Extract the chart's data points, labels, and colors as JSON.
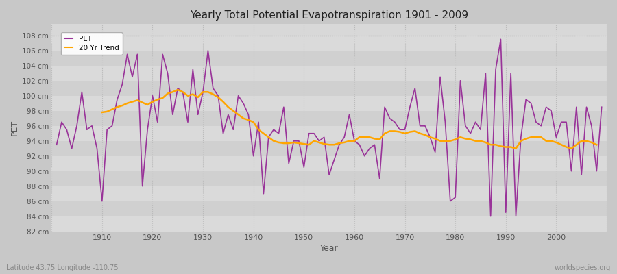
{
  "title": "Yearly Total Potential Evapotranspiration 1901 - 2009",
  "xlabel": "Year",
  "ylabel": "PET",
  "subtitle": "Latitude 43.75 Longitude -110.75",
  "watermark": "worldspecies.org",
  "pet_color": "#993399",
  "trend_color": "#FFA500",
  "fig_bg_color": "#C8C8C8",
  "plot_bg_color": "#D8D8D8",
  "band_color_light": "#DDDDDD",
  "band_color_dark": "#CCCCCC",
  "ylim": [
    82,
    109
  ],
  "xlim": [
    1900,
    2010
  ],
  "ytick_labels": [
    "82 cm",
    "84 cm",
    "86 cm",
    "88 cm",
    "90 cm",
    "92 cm",
    "94 cm",
    "96 cm",
    "98 cm",
    "100 cm",
    "102 cm",
    "104 cm",
    "106 cm",
    "108 cm"
  ],
  "ytick_values": [
    82,
    84,
    86,
    88,
    90,
    92,
    94,
    96,
    98,
    100,
    102,
    104,
    106,
    108
  ],
  "years": [
    1901,
    1902,
    1903,
    1904,
    1905,
    1906,
    1907,
    1908,
    1909,
    1910,
    1911,
    1912,
    1913,
    1914,
    1915,
    1916,
    1917,
    1918,
    1919,
    1920,
    1921,
    1922,
    1923,
    1924,
    1925,
    1926,
    1927,
    1928,
    1929,
    1930,
    1931,
    1932,
    1933,
    1934,
    1935,
    1936,
    1937,
    1938,
    1939,
    1940,
    1941,
    1942,
    1943,
    1944,
    1945,
    1946,
    1947,
    1948,
    1949,
    1950,
    1951,
    1952,
    1953,
    1954,
    1955,
    1956,
    1957,
    1958,
    1959,
    1960,
    1961,
    1962,
    1963,
    1964,
    1965,
    1966,
    1967,
    1968,
    1969,
    1970,
    1971,
    1972,
    1973,
    1974,
    1975,
    1976,
    1977,
    1978,
    1979,
    1980,
    1981,
    1982,
    1983,
    1984,
    1985,
    1986,
    1987,
    1988,
    1989,
    1990,
    1991,
    1992,
    1993,
    1994,
    1995,
    1996,
    1997,
    1998,
    1999,
    2000,
    2001,
    2002,
    2003,
    2004,
    2005,
    2006,
    2007,
    2008,
    2009
  ],
  "pet_values": [
    93.5,
    96.5,
    95.5,
    93.0,
    96.0,
    100.5,
    95.5,
    96.0,
    93.0,
    86.0,
    95.5,
    96.0,
    99.5,
    101.5,
    105.5,
    102.5,
    105.5,
    88.0,
    95.5,
    100.0,
    96.5,
    105.5,
    103.0,
    97.5,
    101.0,
    100.5,
    96.5,
    103.5,
    97.5,
    100.5,
    106.0,
    101.0,
    100.0,
    95.0,
    97.5,
    95.5,
    100.0,
    99.0,
    97.5,
    92.0,
    96.5,
    87.0,
    94.5,
    95.5,
    95.0,
    98.5,
    91.0,
    94.0,
    94.0,
    90.5,
    95.0,
    95.0,
    94.0,
    94.5,
    89.5,
    91.5,
    93.5,
    94.5,
    97.5,
    94.0,
    93.5,
    92.0,
    93.0,
    93.5,
    89.0,
    98.5,
    97.0,
    96.5,
    95.5,
    95.5,
    98.5,
    101.0,
    96.0,
    96.0,
    94.5,
    92.5,
    102.5,
    96.5,
    86.0,
    86.5,
    102.0,
    96.0,
    95.0,
    96.5,
    95.5,
    103.0,
    84.0,
    103.5,
    107.5,
    84.5,
    103.0,
    84.0,
    94.5,
    99.5,
    99.0,
    96.5,
    96.0,
    98.5,
    98.0,
    94.5,
    96.5,
    96.5,
    90.0,
    98.5,
    89.5,
    98.5,
    96.0,
    90.0,
    98.5
  ],
  "trend_values": [
    null,
    null,
    null,
    null,
    null,
    null,
    null,
    null,
    null,
    97.8,
    97.9,
    98.2,
    98.5,
    98.7,
    99.0,
    99.2,
    99.4,
    99.1,
    98.8,
    99.2,
    99.5,
    99.7,
    100.3,
    100.5,
    100.8,
    100.5,
    100.0,
    100.2,
    99.8,
    100.5,
    100.5,
    100.2,
    99.8,
    99.2,
    98.5,
    98.0,
    97.5,
    97.0,
    96.8,
    96.5,
    95.5,
    95.0,
    94.5,
    94.0,
    93.8,
    93.7,
    93.7,
    93.8,
    93.7,
    93.6,
    93.5,
    94.0,
    93.8,
    93.6,
    93.5,
    93.5,
    93.7,
    93.8,
    94.0,
    94.0,
    94.5,
    94.5,
    94.5,
    94.3,
    94.2,
    95.0,
    95.3,
    95.3,
    95.2,
    95.0,
    95.2,
    95.3,
    95.0,
    94.8,
    94.5,
    94.3,
    94.0,
    94.0,
    94.0,
    94.2,
    94.5,
    94.3,
    94.2,
    94.0,
    94.0,
    93.8,
    93.5,
    93.5,
    93.3,
    93.2,
    93.2,
    93.0,
    94.0,
    94.3,
    94.5,
    94.5,
    94.5,
    94.0,
    94.0,
    93.8,
    93.5,
    93.2,
    93.0,
    93.5,
    94.0,
    94.0,
    93.8,
    93.5
  ]
}
